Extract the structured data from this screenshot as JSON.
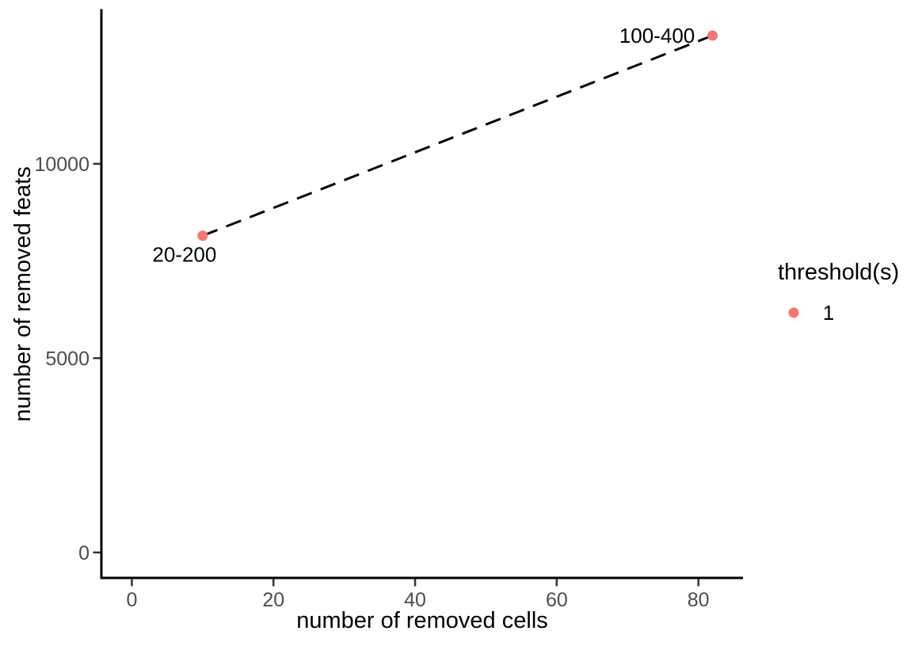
{
  "figure": {
    "background": "#FFFFFF"
  },
  "chart_data": {
    "type": "scatter",
    "title": "",
    "xlabel": "number of removed cells",
    "ylabel": "number of removed feats",
    "x_ticks": [
      0,
      20,
      40,
      60,
      80
    ],
    "y_ticks": [
      0,
      5000,
      10000
    ],
    "xlim": [
      -4.3,
      86.3
    ],
    "ylim": [
      -655,
      13950
    ],
    "grid": false,
    "axis_color": "#000000",
    "tick_color": "#333333",
    "tick_label_color": "#4D4D4D",
    "series": [
      {
        "name": "1",
        "color": "#F8766D",
        "points": [
          {
            "x": 10,
            "y": 8150,
            "label": "20-200",
            "label_dx": -23,
            "label_dy": 24
          },
          {
            "x": 82,
            "y": 13300,
            "label": "100-400",
            "label_dx": -70,
            "label_dy": 0
          }
        ]
      }
    ],
    "connector": {
      "linetype": "dashed",
      "color": "#000000"
    },
    "legend": {
      "title": "threshold(s)",
      "position": "right",
      "items": [
        {
          "label": "1",
          "color": "#F8766D"
        }
      ]
    }
  }
}
